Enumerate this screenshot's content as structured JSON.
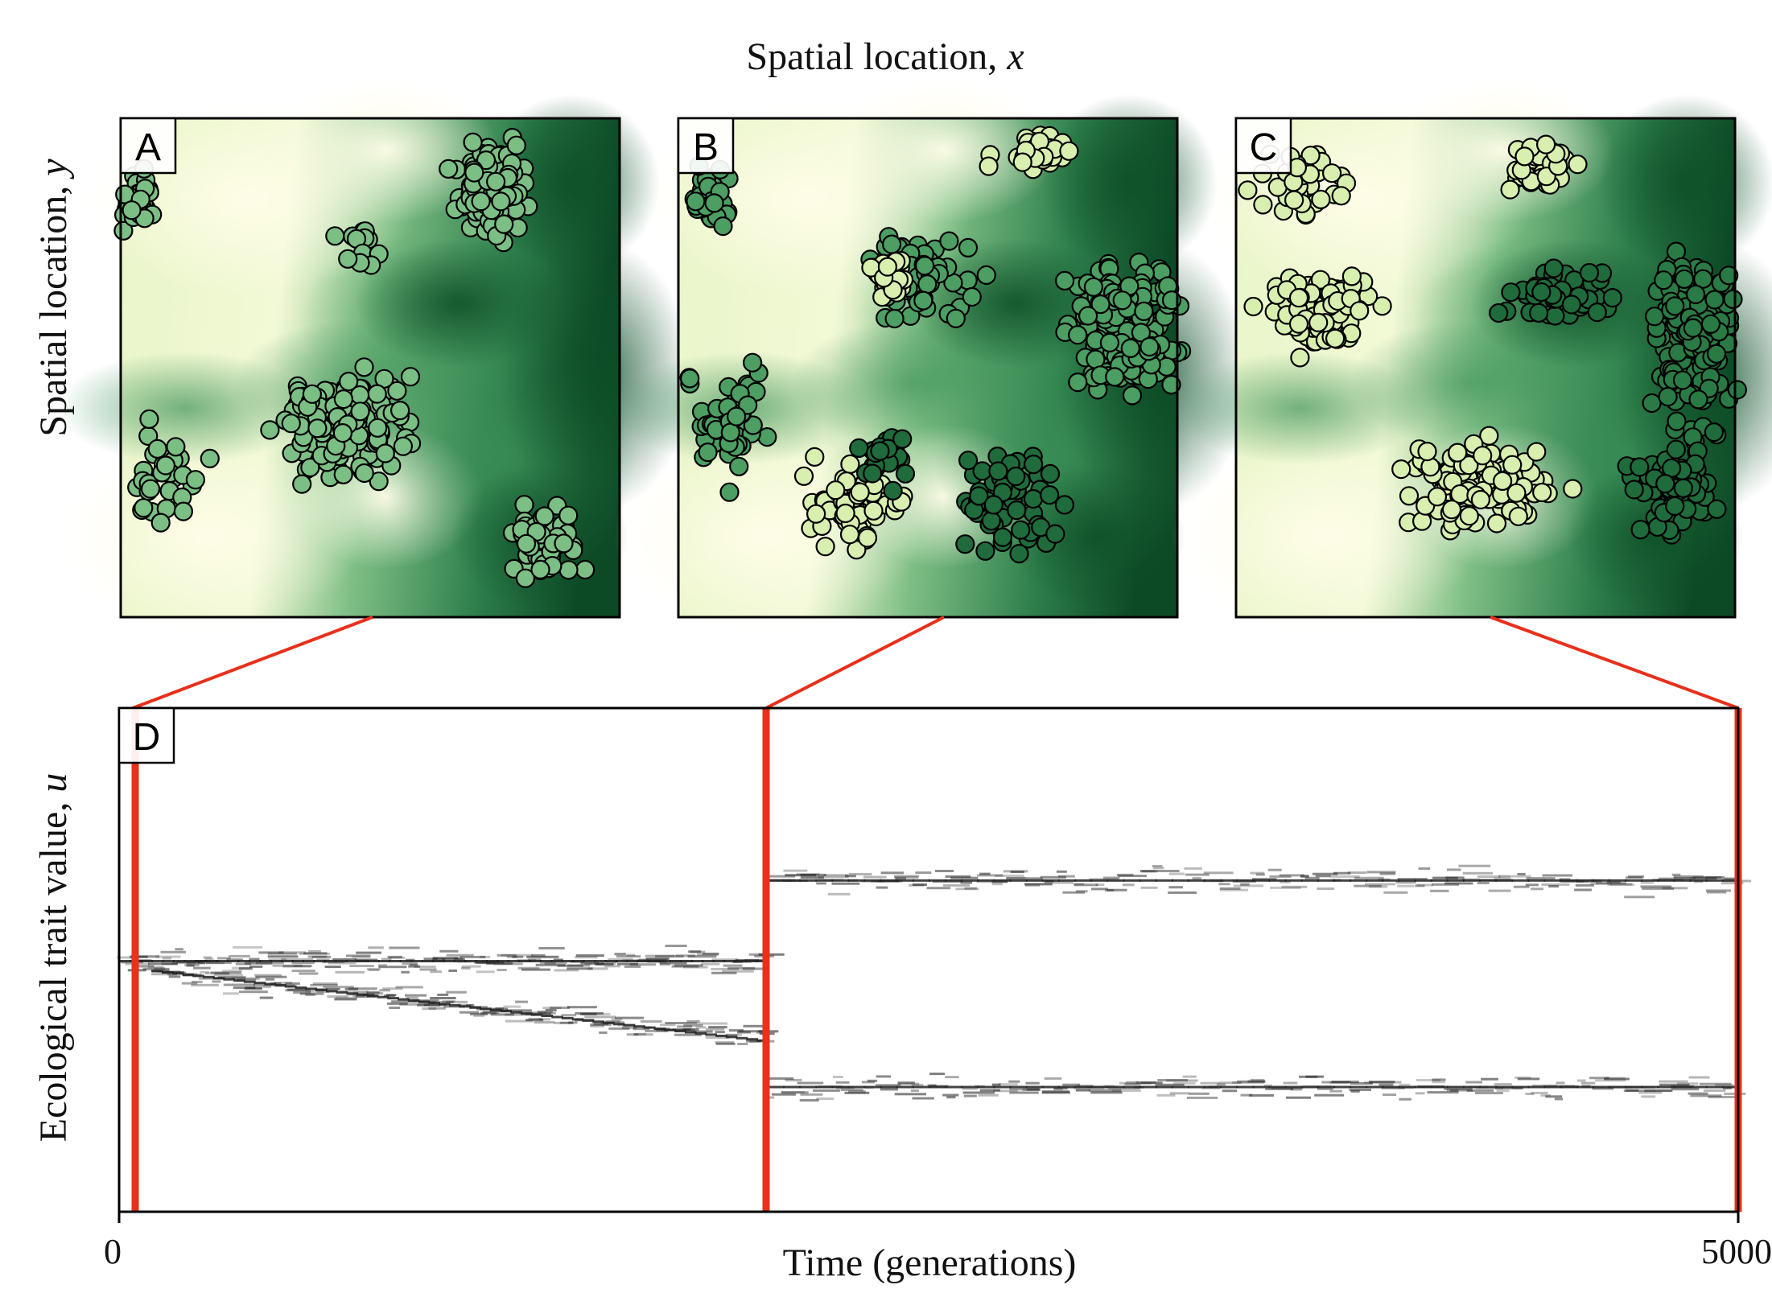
{
  "figure": {
    "top_xlabel_text": "Spatial location, ",
    "top_xlabel_var": "x",
    "top_ylabel_text": "Spatial location, ",
    "top_ylabel_var": "y",
    "bottom_ylabel_text": "Ecological trait value, ",
    "bottom_ylabel_var": "u",
    "bottom_xlabel": "Time (generations)",
    "x_tick_start": "0",
    "x_tick_end": "5000"
  },
  "panels": [
    {
      "label": "A",
      "snapshot_time": 50
    },
    {
      "label": "B",
      "snapshot_time": 2000
    },
    {
      "label": "C",
      "snapshot_time": 5000
    }
  ],
  "trait_panel": {
    "label": "D"
  },
  "chart_data": {
    "type": "heatmap",
    "xlabel": "Time (generations)",
    "ylabel": "Ecological trait value, u",
    "xlim": [
      0,
      5000
    ],
    "x_ticks": [
      "0",
      "5000"
    ],
    "snapshot_lines_at": [
      50,
      2000,
      5000
    ],
    "trait_branches": [
      {
        "t_start": 0,
        "t_end": 2000,
        "u_start": 0.5,
        "u_end": 0.5
      },
      {
        "t_start": 100,
        "t_end": 2000,
        "u_start": 0.48,
        "u_end": 0.34
      },
      {
        "t_start": 2000,
        "t_end": 5000,
        "u_start": 0.66,
        "u_end": 0.66
      },
      {
        "t_start": 2000,
        "t_end": 5000,
        "u_start": 0.25,
        "u_end": 0.25
      }
    ]
  },
  "colors": {
    "snapshot_line": "#e8301a",
    "habitat_light": "#ffffe5",
    "habitat_dark": "#003a1a",
    "trait_ink": "#2a2a2a"
  }
}
